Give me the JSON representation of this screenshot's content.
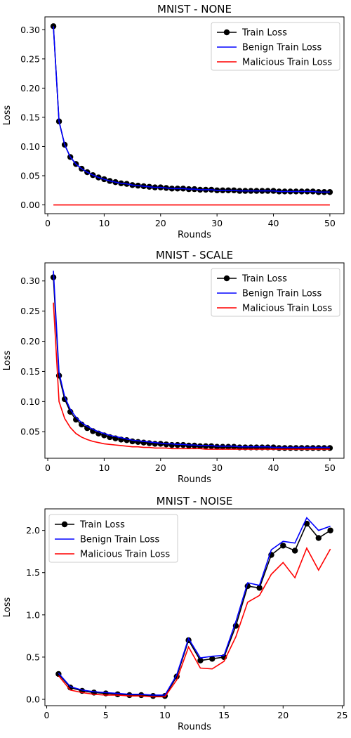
{
  "colors": {
    "train": "#000000",
    "benign": "#0000ff",
    "malicious": "#ff0000",
    "axis": "#000000",
    "legend_border": "#cccccc"
  },
  "chart_data": [
    {
      "type": "line",
      "title": "MNIST - NONE",
      "xlabel": "Rounds",
      "ylabel": "Loss",
      "xlim": [
        -0.5,
        52.5
      ],
      "ylim": [
        -0.015,
        0.322
      ],
      "xticks": [
        0,
        10,
        20,
        30,
        40,
        50
      ],
      "yticks": [
        0.0,
        0.05,
        0.1,
        0.15,
        0.2,
        0.25,
        0.3
      ],
      "ytick_labels": [
        "0.00",
        "0.05",
        "0.10",
        "0.15",
        "0.20",
        "0.25",
        "0.30"
      ],
      "grid": false,
      "legend": "top-right",
      "x": [
        1,
        2,
        3,
        4,
        5,
        6,
        7,
        8,
        9,
        10,
        11,
        12,
        13,
        14,
        15,
        16,
        17,
        18,
        19,
        20,
        21,
        22,
        23,
        24,
        25,
        26,
        27,
        28,
        29,
        30,
        31,
        32,
        33,
        34,
        35,
        36,
        37,
        38,
        39,
        40,
        41,
        42,
        43,
        44,
        45,
        46,
        47,
        48,
        49,
        50
      ],
      "series": [
        {
          "name": "Train Loss",
          "color": "#000000",
          "marker": "o",
          "values": [
            0.306,
            0.143,
            0.103,
            0.082,
            0.07,
            0.062,
            0.056,
            0.051,
            0.047,
            0.044,
            0.041,
            0.039,
            0.037,
            0.036,
            0.034,
            0.033,
            0.032,
            0.031,
            0.03,
            0.03,
            0.029,
            0.028,
            0.028,
            0.028,
            0.027,
            0.027,
            0.026,
            0.026,
            0.026,
            0.025,
            0.025,
            0.025,
            0.025,
            0.024,
            0.024,
            0.024,
            0.024,
            0.024,
            0.024,
            0.024,
            0.023,
            0.023,
            0.023,
            0.023,
            0.023,
            0.023,
            0.023,
            0.022,
            0.022,
            0.022
          ]
        },
        {
          "name": "Benign Train Loss",
          "color": "#0000ff",
          "values": [
            0.306,
            0.143,
            0.103,
            0.082,
            0.07,
            0.062,
            0.056,
            0.051,
            0.047,
            0.044,
            0.041,
            0.039,
            0.037,
            0.036,
            0.034,
            0.033,
            0.032,
            0.031,
            0.03,
            0.03,
            0.029,
            0.028,
            0.028,
            0.028,
            0.027,
            0.027,
            0.026,
            0.026,
            0.026,
            0.025,
            0.025,
            0.025,
            0.025,
            0.024,
            0.024,
            0.024,
            0.024,
            0.024,
            0.024,
            0.024,
            0.023,
            0.023,
            0.023,
            0.023,
            0.023,
            0.023,
            0.023,
            0.022,
            0.022,
            0.022
          ]
        },
        {
          "name": "Malicious Train Loss",
          "color": "#ff0000",
          "values": [
            0,
            0,
            0,
            0,
            0,
            0,
            0,
            0,
            0,
            0,
            0,
            0,
            0,
            0,
            0,
            0,
            0,
            0,
            0,
            0,
            0,
            0,
            0,
            0,
            0,
            0,
            0,
            0,
            0,
            0,
            0,
            0,
            0,
            0,
            0,
            0,
            0,
            0,
            0,
            0,
            0,
            0,
            0,
            0,
            0,
            0,
            0,
            0,
            0,
            0
          ]
        }
      ]
    },
    {
      "type": "line",
      "title": "MNIST - SCALE",
      "xlabel": "Rounds",
      "ylabel": "Loss",
      "xlim": [
        -0.5,
        52.5
      ],
      "ylim": [
        0.006,
        0.33
      ],
      "xticks": [
        0,
        10,
        20,
        30,
        40,
        50
      ],
      "yticks": [
        0.05,
        0.1,
        0.15,
        0.2,
        0.25,
        0.3
      ],
      "ytick_labels": [
        "0.05",
        "0.10",
        "0.15",
        "0.20",
        "0.25",
        "0.30"
      ],
      "grid": false,
      "legend": "top-right",
      "x": [
        1,
        2,
        3,
        4,
        5,
        6,
        7,
        8,
        9,
        10,
        11,
        12,
        13,
        14,
        15,
        16,
        17,
        18,
        19,
        20,
        21,
        22,
        23,
        24,
        25,
        26,
        27,
        28,
        29,
        30,
        31,
        32,
        33,
        34,
        35,
        36,
        37,
        38,
        39,
        40,
        41,
        42,
        43,
        44,
        45,
        46,
        47,
        48,
        49,
        50
      ],
      "series": [
        {
          "name": "Train Loss",
          "color": "#000000",
          "marker": "o",
          "values": [
            0.306,
            0.143,
            0.104,
            0.083,
            0.07,
            0.062,
            0.056,
            0.051,
            0.047,
            0.044,
            0.041,
            0.039,
            0.037,
            0.036,
            0.034,
            0.033,
            0.032,
            0.031,
            0.03,
            0.03,
            0.029,
            0.028,
            0.028,
            0.028,
            0.027,
            0.027,
            0.026,
            0.026,
            0.026,
            0.025,
            0.025,
            0.025,
            0.025,
            0.024,
            0.024,
            0.024,
            0.024,
            0.024,
            0.024,
            0.024,
            0.023,
            0.023,
            0.023,
            0.023,
            0.023,
            0.023,
            0.023,
            0.023,
            0.023,
            0.023
          ]
        },
        {
          "name": "Benign Train Loss",
          "color": "#0000ff",
          "values": [
            0.317,
            0.148,
            0.108,
            0.087,
            0.074,
            0.065,
            0.059,
            0.054,
            0.05,
            0.047,
            0.044,
            0.042,
            0.04,
            0.038,
            0.036,
            0.035,
            0.034,
            0.033,
            0.032,
            0.031,
            0.03,
            0.03,
            0.029,
            0.029,
            0.028,
            0.028,
            0.027,
            0.027,
            0.027,
            0.026,
            0.026,
            0.026,
            0.026,
            0.025,
            0.025,
            0.025,
            0.025,
            0.025,
            0.025,
            0.024,
            0.024,
            0.024,
            0.024,
            0.024,
            0.024,
            0.024,
            0.024,
            0.024,
            0.024,
            0.024
          ]
        },
        {
          "name": "Malicious Train Loss",
          "color": "#ff0000",
          "values": [
            0.264,
            0.1,
            0.072,
            0.057,
            0.047,
            0.041,
            0.037,
            0.034,
            0.032,
            0.03,
            0.029,
            0.028,
            0.027,
            0.026,
            0.025,
            0.025,
            0.024,
            0.024,
            0.023,
            0.023,
            0.023,
            0.022,
            0.022,
            0.022,
            0.022,
            0.022,
            0.022,
            0.021,
            0.021,
            0.021,
            0.021,
            0.021,
            0.021,
            0.021,
            0.021,
            0.021,
            0.021,
            0.021,
            0.021,
            0.021,
            0.021,
            0.021,
            0.021,
            0.021,
            0.021,
            0.021,
            0.021,
            0.021,
            0.021,
            0.021
          ]
        }
      ]
    },
    {
      "type": "line",
      "title": "MNIST - NOISE",
      "xlabel": "Rounds",
      "ylabel": "Loss",
      "xlim": [
        -0.15,
        25.15
      ],
      "ylim": [
        -0.075,
        2.255
      ],
      "xticks": [
        0,
        5,
        10,
        15,
        20,
        25
      ],
      "yticks": [
        0.0,
        0.5,
        1.0,
        1.5,
        2.0
      ],
      "ytick_labels": [
        "0.0",
        "0.5",
        "1.0",
        "1.5",
        "2.0"
      ],
      "grid": false,
      "legend": "top-left",
      "x": [
        1,
        2,
        3,
        4,
        5,
        6,
        7,
        8,
        9,
        10,
        11,
        12,
        13,
        14,
        15,
        16,
        17,
        18,
        19,
        20,
        21,
        22,
        23,
        24
      ],
      "series": [
        {
          "name": "Train Loss",
          "color": "#000000",
          "marker": "o",
          "values": [
            0.3,
            0.14,
            0.1,
            0.08,
            0.07,
            0.06,
            0.05,
            0.05,
            0.04,
            0.04,
            0.27,
            0.7,
            0.46,
            0.48,
            0.5,
            0.87,
            1.34,
            1.32,
            1.71,
            1.82,
            1.76,
            2.08,
            1.91,
            2.0
          ]
        },
        {
          "name": "Benign Train Loss",
          "color": "#0000ff",
          "values": [
            0.31,
            0.15,
            0.11,
            0.09,
            0.08,
            0.07,
            0.06,
            0.06,
            0.05,
            0.05,
            0.29,
            0.72,
            0.49,
            0.51,
            0.52,
            0.92,
            1.38,
            1.35,
            1.77,
            1.87,
            1.85,
            2.15,
            2.0,
            2.05
          ]
        },
        {
          "name": "Malicious Train Loss",
          "color": "#ff0000",
          "values": [
            0.28,
            0.11,
            0.08,
            0.06,
            0.05,
            0.05,
            0.04,
            0.04,
            0.03,
            0.03,
            0.23,
            0.62,
            0.37,
            0.36,
            0.45,
            0.74,
            1.15,
            1.23,
            1.48,
            1.62,
            1.44,
            1.79,
            1.53,
            1.78
          ]
        }
      ]
    }
  ]
}
